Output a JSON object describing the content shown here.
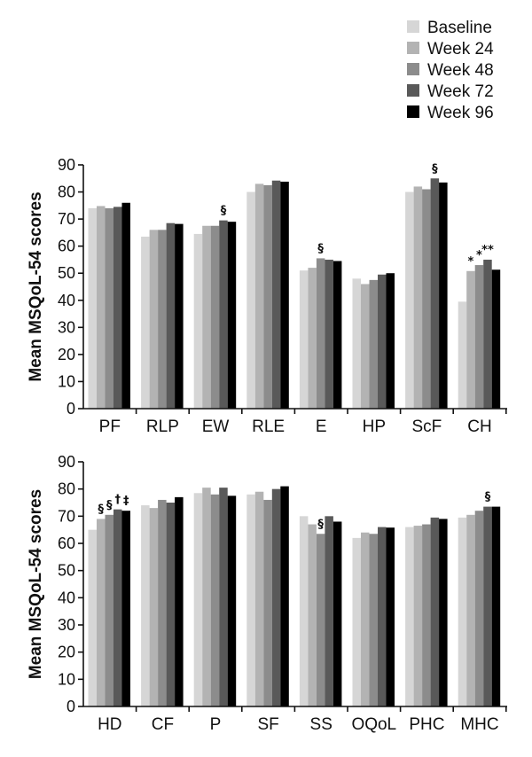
{
  "legend": {
    "placement": "top-right",
    "items": [
      {
        "label": "Baseline",
        "color": "#d6d6d6"
      },
      {
        "label": "Week 24",
        "color": "#b3b3b3"
      },
      {
        "label": "Week 48",
        "color": "#8c8c8c"
      },
      {
        "label": "Week 72",
        "color": "#595959"
      },
      {
        "label": "Week 96",
        "color": "#000000"
      }
    ]
  },
  "chart_data": [
    {
      "type": "bar",
      "ylabel": "Mean MSQoL-54 scores",
      "ylim": [
        0,
        90
      ],
      "yticks": [
        0,
        10,
        20,
        30,
        40,
        50,
        60,
        70,
        80,
        90
      ],
      "categories": [
        "PF",
        "RLP",
        "EW",
        "RLE",
        "E",
        "HP",
        "ScF",
        "CH"
      ],
      "series": [
        {
          "name": "Baseline",
          "values": [
            74.0,
            63.5,
            64.5,
            80.0,
            51.0,
            48.0,
            80.0,
            39.5
          ]
        },
        {
          "name": "Week 24",
          "values": [
            74.8,
            66.0,
            67.5,
            83.0,
            52.0,
            46.0,
            82.0,
            50.8
          ]
        },
        {
          "name": "Week 48",
          "values": [
            74.0,
            66.0,
            67.5,
            82.5,
            55.5,
            47.5,
            81.0,
            53.0
          ]
        },
        {
          "name": "Week 72",
          "values": [
            74.5,
            68.5,
            69.5,
            84.2,
            55.0,
            49.5,
            85.0,
            55.0
          ]
        },
        {
          "name": "Week 96",
          "values": [
            76.0,
            68.2,
            69.0,
            83.8,
            54.5,
            50.0,
            83.5,
            51.3
          ]
        }
      ],
      "annotations": [
        {
          "category": "EW",
          "text": "§",
          "series": "Week 72"
        },
        {
          "category": "E",
          "text": "§",
          "series": "Week 48"
        },
        {
          "category": "ScF",
          "text": "§",
          "series": "Week 72"
        },
        {
          "category": "CH",
          "text": "*",
          "series": "Week 24"
        },
        {
          "category": "CH",
          "text": "*",
          "series": "Week 48"
        },
        {
          "category": "CH",
          "text": "**",
          "series": "Week 72"
        }
      ]
    },
    {
      "type": "bar",
      "ylabel": "Mean MSQoL-54 scores",
      "ylim": [
        0,
        90
      ],
      "yticks": [
        0,
        10,
        20,
        30,
        40,
        50,
        60,
        70,
        80,
        90
      ],
      "categories": [
        "HD",
        "CF",
        "P",
        "SF",
        "SS",
        "OQoL",
        "PHC",
        "MHC"
      ],
      "series": [
        {
          "name": "Baseline",
          "values": [
            65.0,
            74.0,
            78.5,
            78.0,
            70.0,
            62.0,
            66.0,
            69.5
          ]
        },
        {
          "name": "Week 24",
          "values": [
            69.0,
            73.0,
            80.5,
            79.0,
            67.0,
            64.0,
            66.5,
            70.5
          ]
        },
        {
          "name": "Week 48",
          "values": [
            70.5,
            76.0,
            78.0,
            76.0,
            63.5,
            63.5,
            67.0,
            72.0
          ]
        },
        {
          "name": "Week 72",
          "values": [
            72.5,
            75.0,
            80.5,
            80.0,
            70.0,
            66.0,
            69.5,
            73.5
          ]
        },
        {
          "name": "Week 96",
          "values": [
            72.0,
            77.0,
            77.5,
            81.0,
            68.0,
            65.8,
            69.0,
            73.5
          ]
        }
      ],
      "annotations": [
        {
          "category": "HD",
          "text": "§",
          "series": "Week 24"
        },
        {
          "category": "HD",
          "text": "§",
          "series": "Week 48"
        },
        {
          "category": "HD",
          "text": "†",
          "series": "Week 72"
        },
        {
          "category": "HD",
          "text": "‡",
          "series": "Week 96"
        },
        {
          "category": "SS",
          "text": "§",
          "series": "Week 48"
        },
        {
          "category": "MHC",
          "text": "§",
          "series": "Week 72"
        }
      ]
    }
  ]
}
